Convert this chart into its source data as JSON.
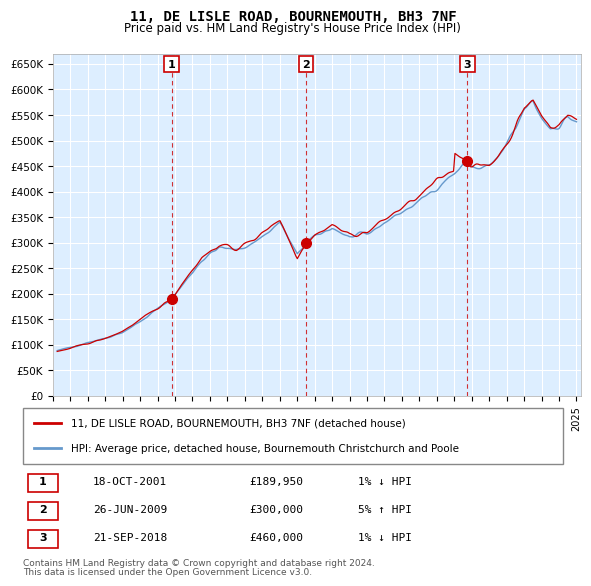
{
  "title1": "11, DE LISLE ROAD, BOURNEMOUTH, BH3 7NF",
  "title2": "Price paid vs. HM Land Registry's House Price Index (HPI)",
  "legend_line1": "11, DE LISLE ROAD, BOURNEMOUTH, BH3 7NF (detached house)",
  "legend_line2": "HPI: Average price, detached house, Bournemouth Christchurch and Poole",
  "footer1": "Contains HM Land Registry data © Crown copyright and database right 2024.",
  "footer2": "This data is licensed under the Open Government Licence v3.0.",
  "transactions": [
    {
      "num": 1,
      "date": "18-OCT-2001",
      "price": 189950,
      "hpi_rel": "1% ↓ HPI",
      "x": 2001.8
    },
    {
      "num": 2,
      "date": "26-JUN-2009",
      "price": 300000,
      "hpi_rel": "5% ↑ HPI",
      "x": 2009.5
    },
    {
      "num": 3,
      "date": "21-SEP-2018",
      "price": 460000,
      "hpi_rel": "1% ↓ HPI",
      "x": 2018.75
    }
  ],
  "hpi_color": "#6699cc",
  "price_color": "#cc0000",
  "marker_color": "#cc0000",
  "vline_color": "#cc0000",
  "bg_color": "#ddeeff",
  "grid_color": "#ffffff",
  "ylim": [
    0,
    670000
  ],
  "yticks": [
    0,
    50000,
    100000,
    150000,
    200000,
    250000,
    300000,
    350000,
    400000,
    450000,
    500000,
    550000,
    600000,
    650000
  ],
  "xlim_start": 1995.25,
  "xlim_end": 2025.25
}
